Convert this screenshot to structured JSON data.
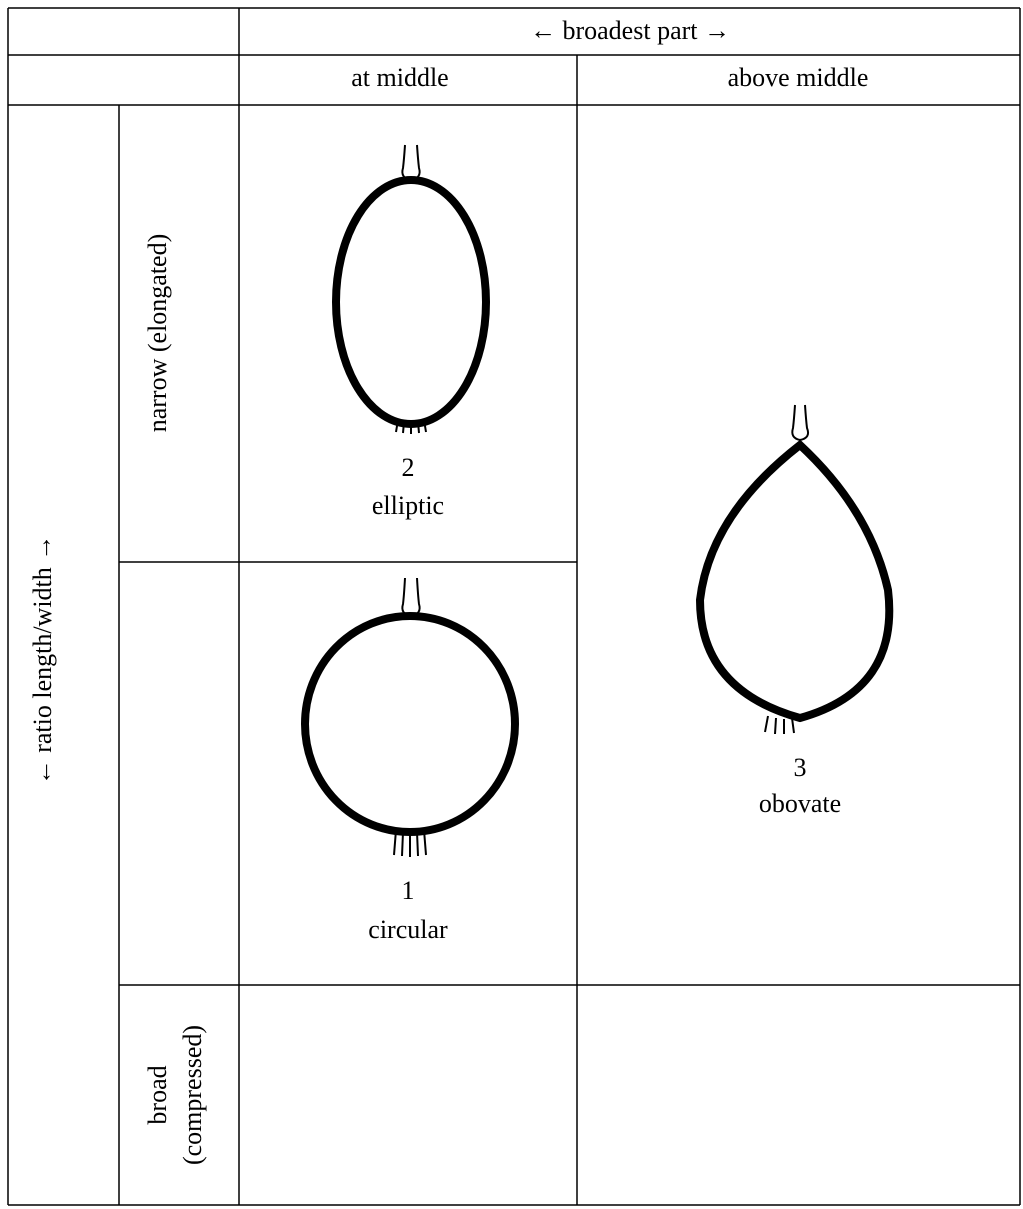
{
  "header": {
    "span_title": "←  broadest part  →",
    "columns": [
      "at middle",
      "above middle"
    ]
  },
  "rows": {
    "axis_label": "←  ratio length/width  →",
    "narrow": "narrow (elongated)",
    "broad": [
      "broad",
      "(compressed)"
    ]
  },
  "cells": [
    {
      "number": "2",
      "name": "elliptic"
    },
    {
      "number": "1",
      "name": "circular"
    },
    {
      "number": "3",
      "name": "obovate"
    }
  ]
}
